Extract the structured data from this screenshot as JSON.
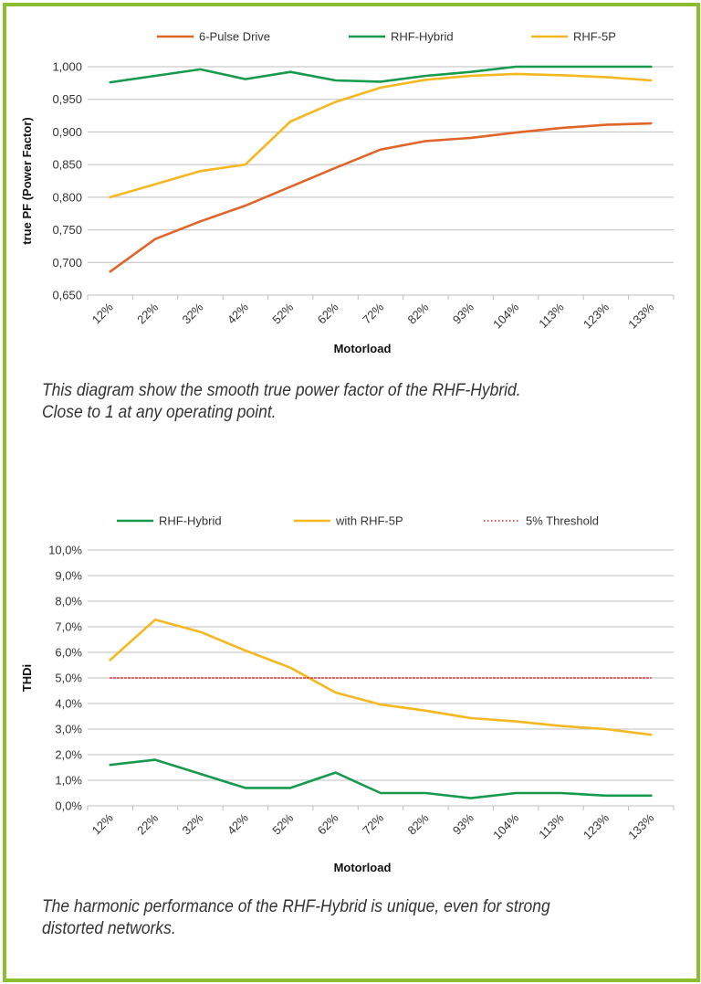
{
  "chart_data": [
    {
      "type": "line",
      "title": "",
      "xlabel": "Motorload",
      "ylabel": "true PF (Power Factor)",
      "categories": [
        "12%",
        "22%",
        "32%",
        "42%",
        "52%",
        "62%",
        "72%",
        "82%",
        "93%",
        "104%",
        "113%",
        "123%",
        "133%"
      ],
      "ylim": [
        0.65,
        1.0
      ],
      "y_ticks": [
        "0,650",
        "0,700",
        "0,750",
        "0,800",
        "0,850",
        "0,900",
        "0,950",
        "1,000"
      ],
      "grid": true,
      "legend_position": "top",
      "series": [
        {
          "name": "6-Pulse Drive",
          "color": "#e0652a",
          "style": "solid",
          "values": [
            0.686,
            0.736,
            0.763,
            0.787,
            0.816,
            0.845,
            0.873,
            0.886,
            0.891,
            0.899,
            0.906,
            0.911,
            0.913
          ]
        },
        {
          "name": "RHF-Hybrid",
          "color": "#179a4e",
          "style": "solid",
          "values": [
            0.976,
            0.986,
            0.996,
            0.981,
            0.992,
            0.979,
            0.977,
            0.986,
            0.992,
            1.0,
            1.0,
            1.0,
            1.0
          ]
        },
        {
          "name": "RHF-5P",
          "color": "#f5b820",
          "style": "solid",
          "values": [
            0.8,
            0.82,
            0.84,
            0.85,
            0.916,
            0.946,
            0.968,
            0.98,
            0.986,
            0.989,
            0.987,
            0.984,
            0.979
          ]
        }
      ]
    },
    {
      "type": "line",
      "title": "",
      "xlabel": "Motorload",
      "ylabel": "THDi",
      "categories": [
        "12%",
        "22%",
        "32%",
        "42%",
        "52%",
        "62%",
        "72%",
        "82%",
        "93%",
        "104%",
        "113%",
        "123%",
        "133%"
      ],
      "ylim": [
        0,
        10
      ],
      "y_ticks": [
        "0,0%",
        "1,0%",
        "2,0%",
        "3,0%",
        "4,0%",
        "5,0%",
        "6,0%",
        "7,0%",
        "8,0%",
        "9,0%",
        "10,0%"
      ],
      "grid": true,
      "legend_position": "top",
      "series": [
        {
          "name": "RHF-Hybrid",
          "color": "#179a4e",
          "style": "solid",
          "values": [
            1.6,
            1.8,
            1.25,
            0.7,
            0.7,
            1.3,
            0.5,
            0.5,
            0.3,
            0.5,
            0.5,
            0.4,
            0.4
          ]
        },
        {
          "name": "with RHF-5P",
          "color": "#f5b820",
          "style": "solid",
          "values": [
            5.7,
            7.28,
            6.8,
            6.07,
            5.4,
            4.43,
            3.96,
            3.72,
            3.43,
            3.3,
            3.12,
            3.0,
            2.78
          ]
        },
        {
          "name": "5% Threshold",
          "color": "#d9262a",
          "style": "dotted",
          "values": [
            5,
            5,
            5,
            5,
            5,
            5,
            5,
            5,
            5,
            5,
            5,
            5,
            5
          ]
        }
      ]
    }
  ],
  "captions": [
    {
      "line1": "This diagram show the smooth true power factor of the RHF-Hybrid.",
      "line2": "Close to 1 at any operating point."
    },
    {
      "line1": "The harmonic performance of the RHF-Hybrid is unique, even for strong",
      "line2": "distorted networks."
    }
  ],
  "colors": {
    "border": "#8cbf2f",
    "grid": "#bfbfbf"
  }
}
